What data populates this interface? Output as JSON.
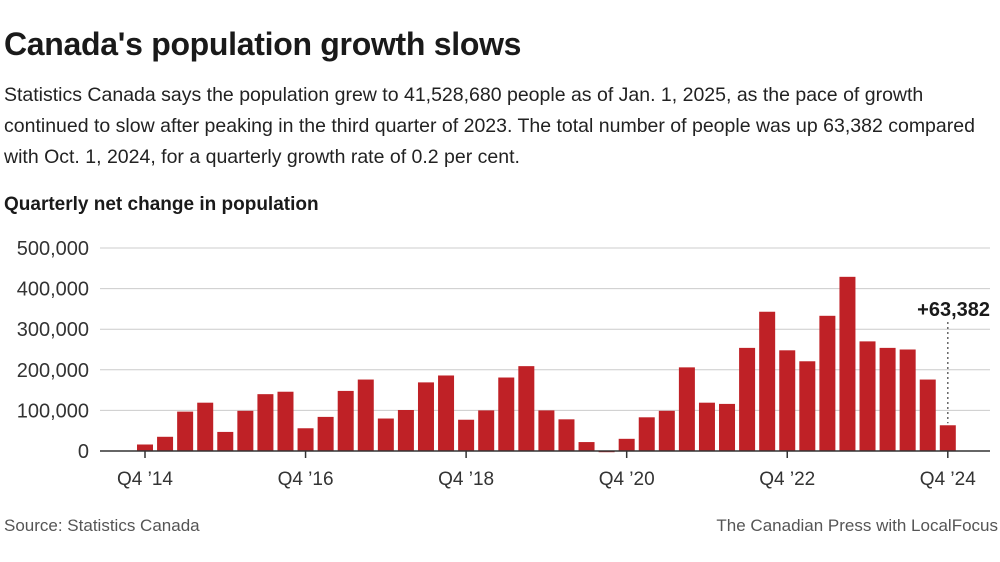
{
  "header": {
    "title": "Canada's population growth slows",
    "subtitle": "Statistics Canada says the population grew to 41,528,680 people as of Jan. 1, 2025, as the pace of growth continued to slow after peaking in the third quarter of 2023. The total number of people was up 63,382 compared with Oct. 1, 2024, for a quarterly growth rate of 0.2 per cent."
  },
  "footer": {
    "source": "Source:  Statistics Canada",
    "credit": "The Canadian Press with LocalFocus"
  },
  "colors": {
    "bar": "#bf2126",
    "grid": "#cccccc",
    "axis": "#333333"
  },
  "chart_data": {
    "type": "bar",
    "title": "Quarterly net change in population",
    "ylim": [
      0,
      500000
    ],
    "y_ticks": [
      0,
      100000,
      200000,
      300000,
      400000,
      500000
    ],
    "y_tick_labels": [
      "0",
      "100,000",
      "200,000",
      "300,000",
      "400,000",
      "500,000"
    ],
    "x_tick_labels": [
      "Q4 ’14",
      "Q4 ’16",
      "Q4 ’18",
      "Q4 ’20",
      "Q4 ’22",
      "Q4 ’24"
    ],
    "x_tick_indices": [
      0,
      8,
      16,
      24,
      32,
      40
    ],
    "grid": true,
    "values": [
      16000,
      35000,
      97000,
      119000,
      47000,
      99000,
      140000,
      146000,
      56000,
      84000,
      148000,
      176000,
      80000,
      101000,
      169000,
      186000,
      77000,
      100000,
      181000,
      209000,
      100000,
      78000,
      22000,
      -3000,
      30000,
      83000,
      99000,
      206000,
      119000,
      116000,
      254000,
      343000,
      248000,
      221000,
      333000,
      429000,
      270000,
      254000,
      250000,
      176000,
      63382
    ],
    "annotation": {
      "label": "+63,382",
      "index": 40
    }
  }
}
